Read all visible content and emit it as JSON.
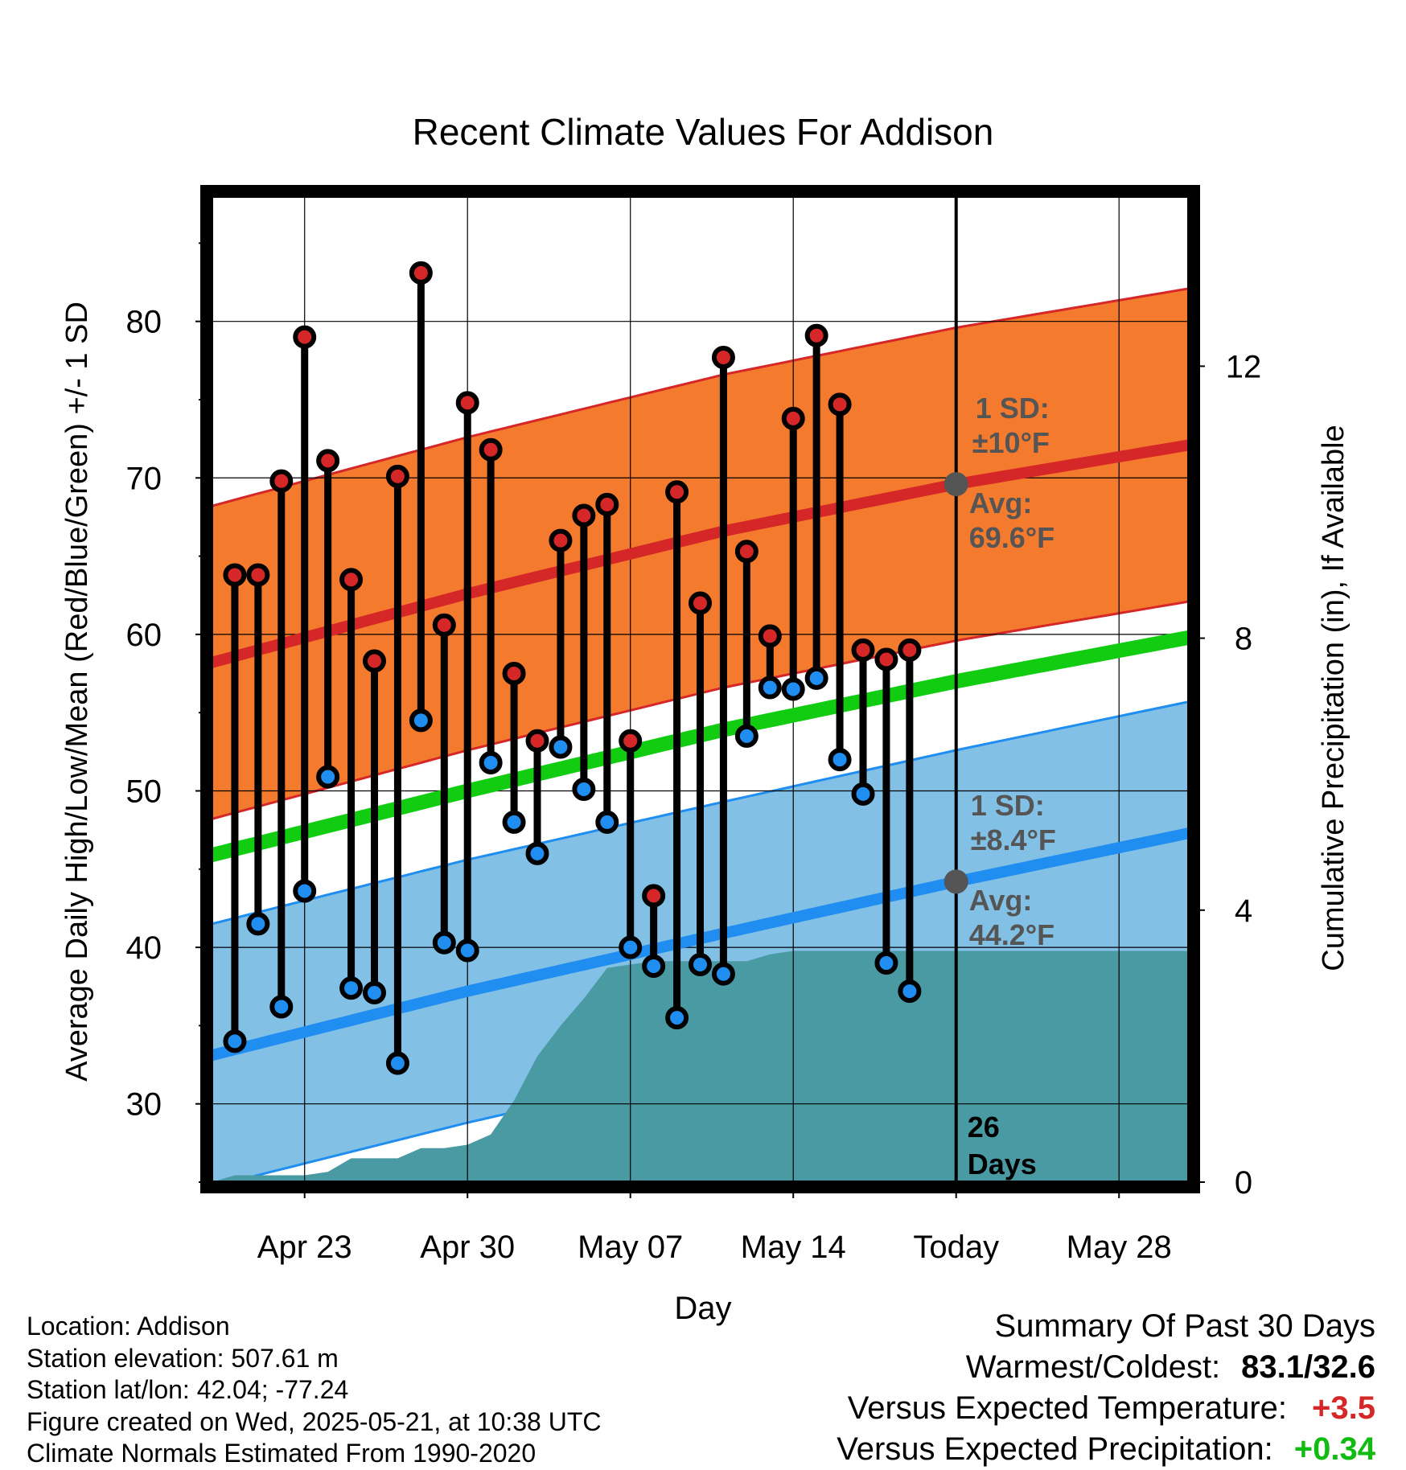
{
  "chart_data": {
    "type": "line",
    "title": "Recent Climate Values For Addison",
    "xlabel": "Day",
    "ylabel_left": "Average Daily High/Low/Mean (Red/Blue/Green) +/- 1 SD",
    "ylabel_right": "Cumulative Precipitation (in), If Available",
    "x_range": [
      "2025-04-19",
      "2025-05-31"
    ],
    "today": "2025-05-21",
    "ylim_left": [
      25,
      88
    ],
    "ylim_right": [
      0,
      14.5
    ],
    "y_ticks_left": [
      30,
      40,
      50,
      60,
      70,
      80
    ],
    "y_ticks_right": [
      0,
      4,
      8,
      12
    ],
    "x_ticks": [
      {
        "date": "2025-04-23",
        "label": "Apr 23"
      },
      {
        "date": "2025-04-30",
        "label": "Apr 30"
      },
      {
        "date": "2025-05-07",
        "label": "May 07"
      },
      {
        "date": "2025-05-14",
        "label": "May 14"
      },
      {
        "date": "2025-05-21",
        "label": "Today"
      },
      {
        "date": "2025-05-28",
        "label": "May 28"
      }
    ],
    "grid": true,
    "daily_obs": [
      {
        "date": "2025-04-20",
        "high": 63.8,
        "low": 34.0
      },
      {
        "date": "2025-04-21",
        "high": 63.8,
        "low": 41.5
      },
      {
        "date": "2025-04-22",
        "high": 69.8,
        "low": 36.2
      },
      {
        "date": "2025-04-23",
        "high": 79.0,
        "low": 43.6
      },
      {
        "date": "2025-04-24",
        "high": 71.1,
        "low": 50.9
      },
      {
        "date": "2025-04-25",
        "high": 63.5,
        "low": 37.4
      },
      {
        "date": "2025-04-26",
        "high": 58.3,
        "low": 37.1
      },
      {
        "date": "2025-04-27",
        "high": 70.1,
        "low": 32.6
      },
      {
        "date": "2025-04-28",
        "high": 83.1,
        "low": 54.5
      },
      {
        "date": "2025-04-29",
        "high": 60.6,
        "low": 40.3
      },
      {
        "date": "2025-04-30",
        "high": 74.8,
        "low": 39.8
      },
      {
        "date": "2025-05-01",
        "high": 71.8,
        "low": 51.8
      },
      {
        "date": "2025-05-02",
        "high": 57.5,
        "low": 48.0
      },
      {
        "date": "2025-05-03",
        "high": 53.2,
        "low": 46.0
      },
      {
        "date": "2025-05-04",
        "high": 66.0,
        "low": 52.8
      },
      {
        "date": "2025-05-05",
        "high": 67.6,
        "low": 50.1
      },
      {
        "date": "2025-05-06",
        "high": 68.3,
        "low": 48.0
      },
      {
        "date": "2025-05-07",
        "high": 53.2,
        "low": 40.0
      },
      {
        "date": "2025-05-08",
        "high": 43.3,
        "low": 38.8
      },
      {
        "date": "2025-05-09",
        "high": 69.1,
        "low": 35.5
      },
      {
        "date": "2025-05-10",
        "high": 62.0,
        "low": 38.9
      },
      {
        "date": "2025-05-11",
        "high": 77.7,
        "low": 38.3
      },
      {
        "date": "2025-05-12",
        "high": 65.3,
        "low": 53.5
      },
      {
        "date": "2025-05-13",
        "high": 59.9,
        "low": 56.6
      },
      {
        "date": "2025-05-14",
        "high": 73.8,
        "low": 56.5
      },
      {
        "date": "2025-05-15",
        "high": 79.1,
        "low": 57.2
      },
      {
        "date": "2025-05-16",
        "high": 74.7,
        "low": 52.0
      },
      {
        "date": "2025-05-17",
        "high": 59.0,
        "low": 49.8
      },
      {
        "date": "2025-05-18",
        "high": 58.4,
        "low": 39.0
      },
      {
        "date": "2025-05-19",
        "high": 59.0,
        "low": 37.2
      }
    ],
    "normals": {
      "high_mean": [
        {
          "date": "2025-04-19",
          "value": 58.2
        },
        {
          "date": "2025-04-30",
          "value": 62.6
        },
        {
          "date": "2025-05-11",
          "value": 66.6
        },
        {
          "date": "2025-05-21",
          "value": 69.6
        },
        {
          "date": "2025-05-31",
          "value": 72.1
        }
      ],
      "high_sd": 10,
      "low_mean": [
        {
          "date": "2025-04-19",
          "value": 33.1
        },
        {
          "date": "2025-04-30",
          "value": 37.2
        },
        {
          "date": "2025-05-11",
          "value": 40.9
        },
        {
          "date": "2025-05-21",
          "value": 44.2
        },
        {
          "date": "2025-05-31",
          "value": 47.3
        }
      ],
      "low_sd": 8.4,
      "mean": [
        {
          "date": "2025-04-19",
          "value": 45.9
        },
        {
          "date": "2025-04-30",
          "value": 50.0
        },
        {
          "date": "2025-05-11",
          "value": 53.9
        },
        {
          "date": "2025-05-21",
          "value": 57.0
        },
        {
          "date": "2025-05-31",
          "value": 59.8
        }
      ]
    },
    "cumulative_precip": [
      {
        "date": "2025-04-19",
        "value": 0.0
      },
      {
        "date": "2025-04-20",
        "value": 0.1
      },
      {
        "date": "2025-04-23",
        "value": 0.1
      },
      {
        "date": "2025-04-24",
        "value": 0.15
      },
      {
        "date": "2025-04-25",
        "value": 0.35
      },
      {
        "date": "2025-04-27",
        "value": 0.35
      },
      {
        "date": "2025-04-28",
        "value": 0.5
      },
      {
        "date": "2025-04-29",
        "value": 0.5
      },
      {
        "date": "2025-04-30",
        "value": 0.55
      },
      {
        "date": "2025-05-01",
        "value": 0.7
      },
      {
        "date": "2025-05-02",
        "value": 1.2
      },
      {
        "date": "2025-05-03",
        "value": 1.85
      },
      {
        "date": "2025-05-04",
        "value": 2.3
      },
      {
        "date": "2025-05-05",
        "value": 2.7
      },
      {
        "date": "2025-05-06",
        "value": 3.15
      },
      {
        "date": "2025-05-07",
        "value": 3.2
      },
      {
        "date": "2025-05-08",
        "value": 3.25
      },
      {
        "date": "2025-05-12",
        "value": 3.25
      },
      {
        "date": "2025-05-13",
        "value": 3.35
      },
      {
        "date": "2025-05-14",
        "value": 3.4
      },
      {
        "date": "2025-05-31",
        "value": 3.4
      }
    ],
    "annotations": {
      "high_sd_label": "1 SD:",
      "high_sd_value": "±10°F",
      "high_avg_label": "Avg:",
      "high_avg_value": "69.6°F",
      "low_sd_label": "1 SD:",
      "low_sd_value": "±8.4°F",
      "low_avg_label": "Avg:",
      "low_avg_value": "44.2°F",
      "days_count": "26",
      "days_label": "Days"
    },
    "colors": {
      "high_band": "#f47a2d",
      "high_line": "#d62728",
      "low_band": "#82c0e6",
      "low_line": "#1f8ef0",
      "mean_line": "#11cc11",
      "precip": "#4a9aa3",
      "annotation": "#555555"
    }
  },
  "info": {
    "location": "Location: Addison",
    "elevation": "Station elevation: 507.61 m",
    "latlon": "Station lat/lon: 42.04; -77.24",
    "created": "Figure created on Wed, 2025-05-21, at 10:38 UTC",
    "normals": "Climate Normals Estimated From 1990-2020"
  },
  "summary": {
    "title": "Summary Of Past 30 Days",
    "warmest_label": "Warmest/Coldest:",
    "warmest_value": "83.1/32.6",
    "temp_label": "Versus Expected Temperature:",
    "temp_value": "+3.5",
    "temp_color": "#d62728",
    "precip_label": "Versus Expected Precipitation:",
    "precip_value": "+0.34",
    "precip_color": "#11bb11"
  }
}
